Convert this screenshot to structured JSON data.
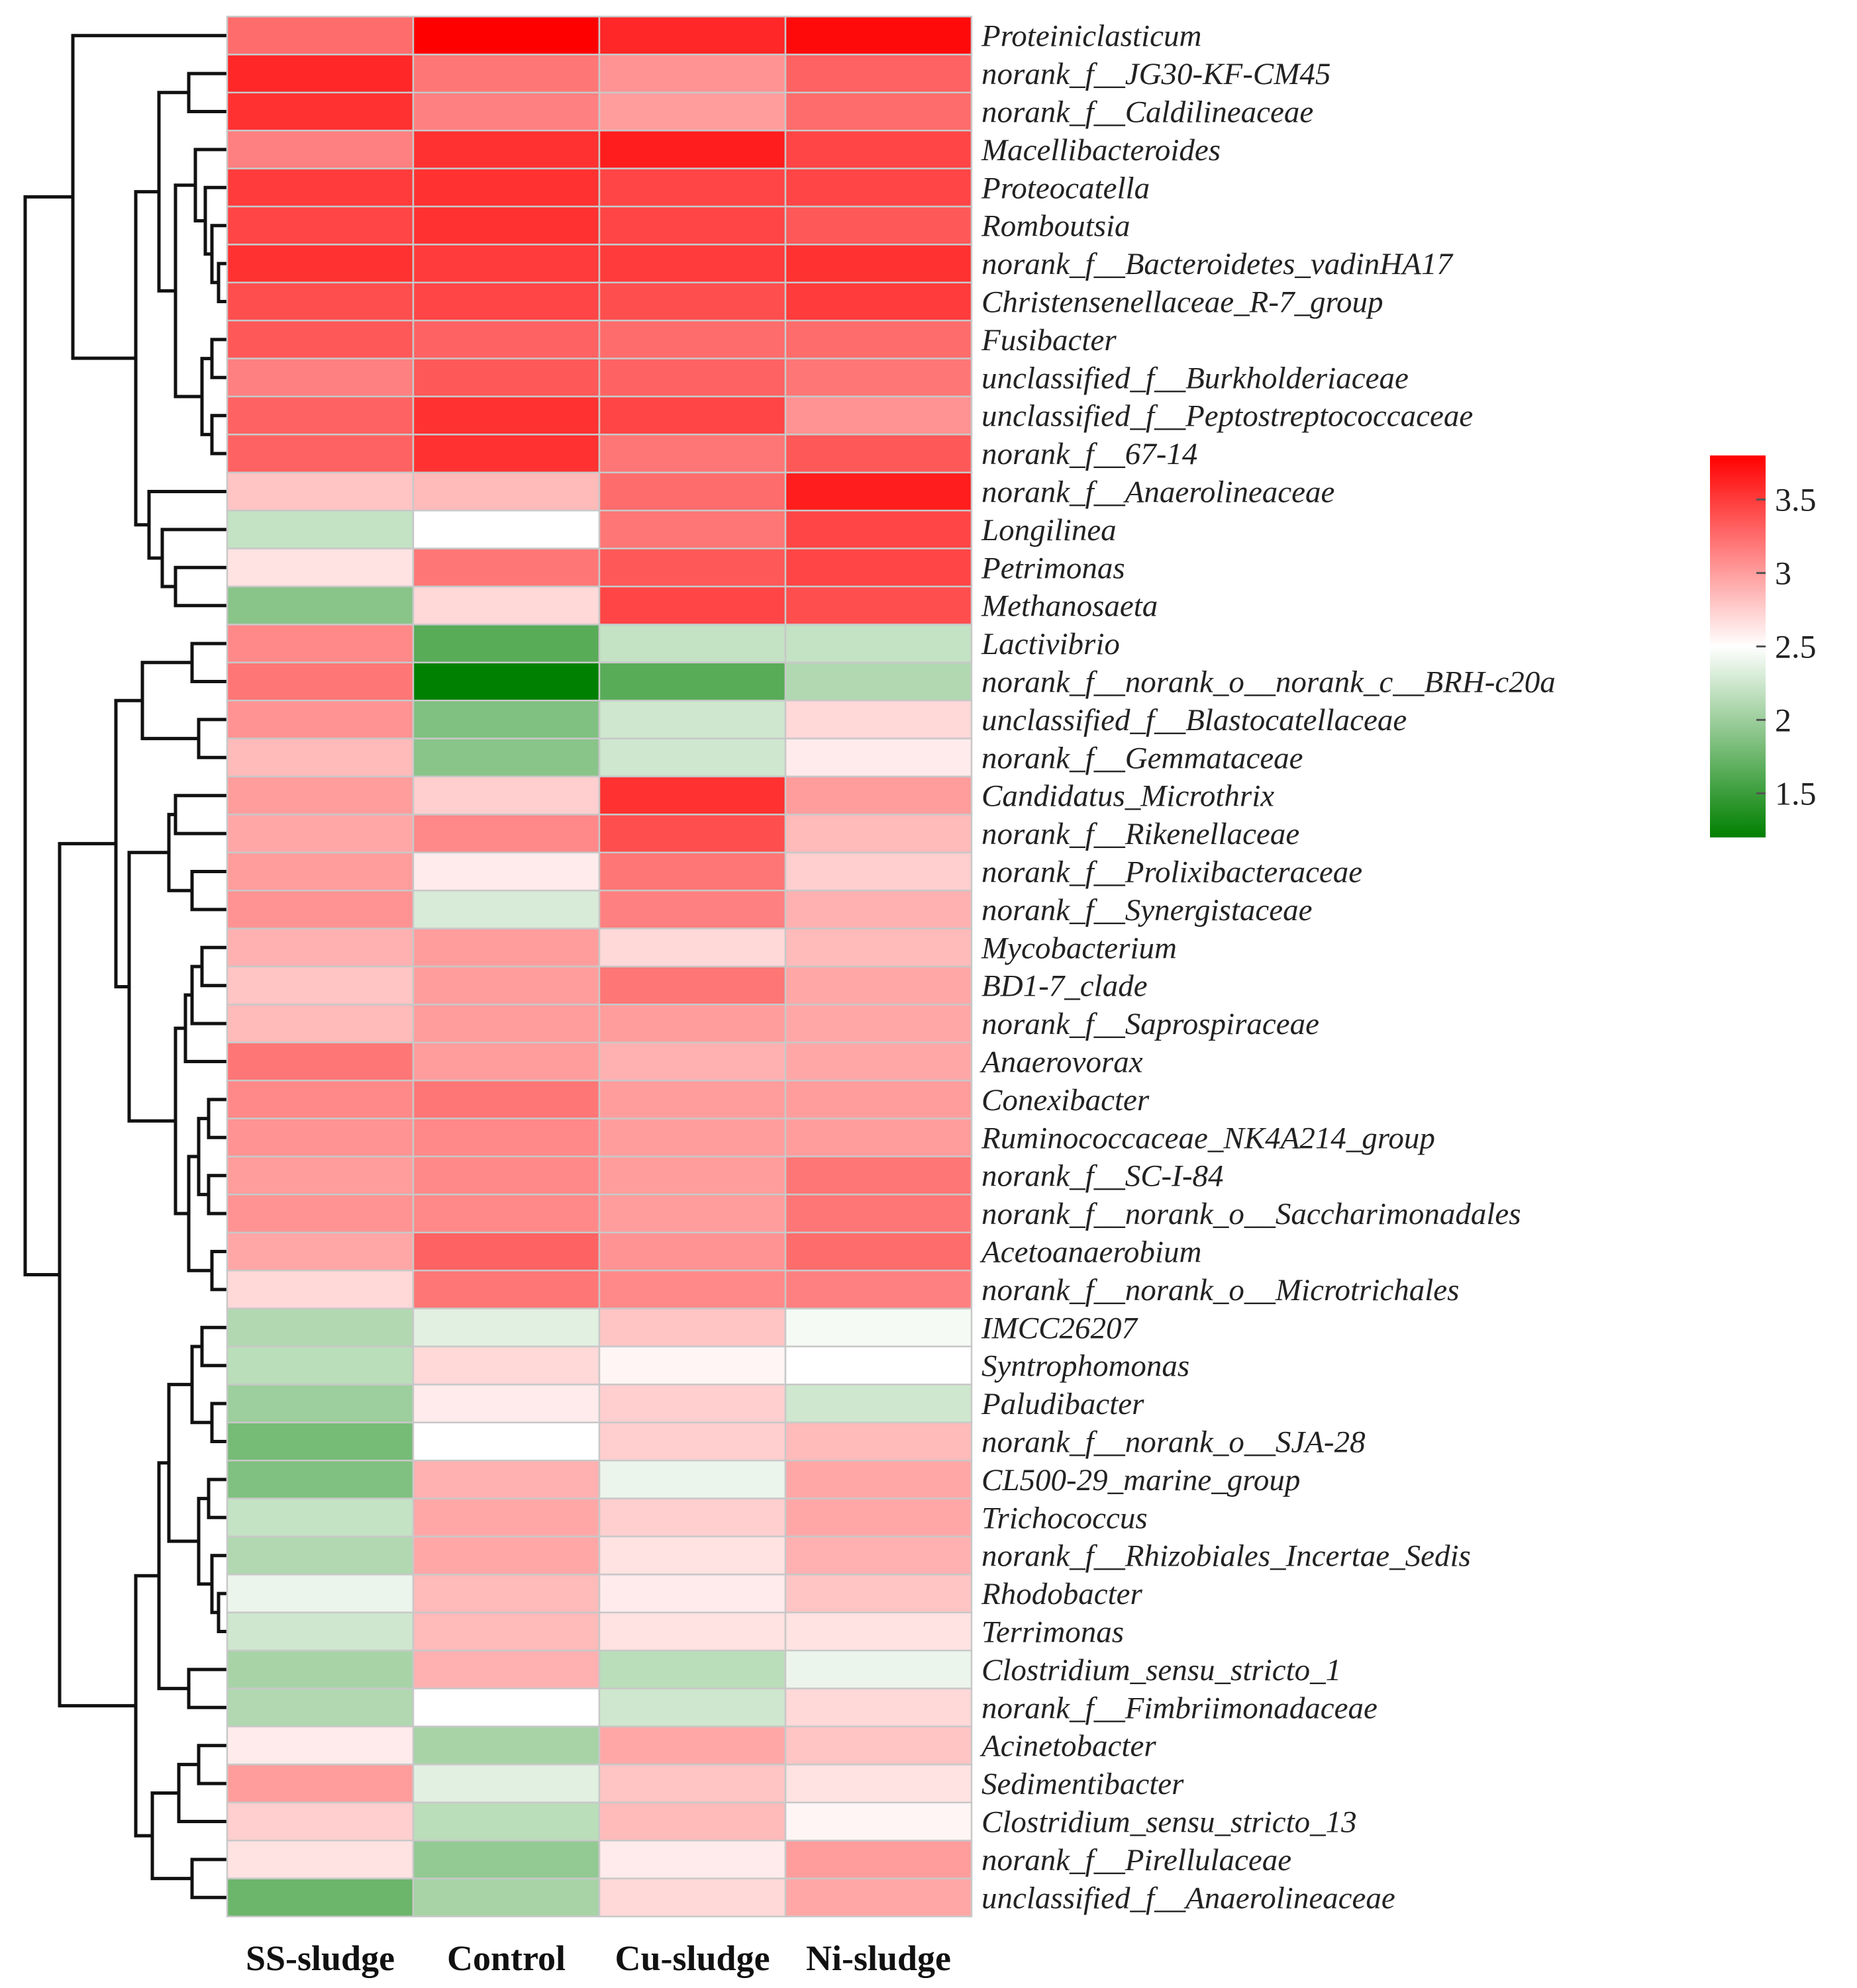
{
  "chart_data": {
    "type": "heatmap",
    "title": "",
    "columns": [
      "SS-sludge",
      "Control",
      "Cu-sludge",
      "Ni-sludge"
    ],
    "rows": [
      "Proteiniclasticum",
      "norank_f__JG30-KF-CM45",
      "norank_f__Caldilineaceae",
      "Macellibacteroides",
      "Proteocatella",
      "Romboutsia",
      "norank_f__Bacteroidetes_vadinHA17",
      "Christensenellaceae_R-7_group",
      "Fusibacter",
      "unclassified_f__Burkholderiaceae",
      "unclassified_f__Peptostreptococcaceae",
      "norank_f__67-14",
      "norank_f__Anaerolineaceae",
      "Longilinea",
      "Petrimonas",
      "Methanosaeta",
      "Lactivibrio",
      "norank_f__norank_o__norank_c__BRH-c20a",
      "unclassified_f__Blastocatellaceae",
      "norank_f__Gemmataceae",
      "Candidatus_Microthrix",
      "norank_f__Rikenellaceae",
      "norank_f__Prolixibacteraceae",
      "norank_f__Synergistaceae",
      "Mycobacterium",
      "BD1-7_clade",
      "norank_f__Saprospiraceae",
      "Anaerovorax",
      "Conexibacter",
      "Ruminococcaceae_NK4A214_group",
      "norank_f__SC-I-84",
      "norank_f__norank_o__Saccharimonadales",
      "Acetoanaerobium",
      "norank_f__norank_o__Microtrichales",
      "IMCC26207",
      "Syntrophomonas",
      "Paludibacter",
      "norank_f__norank_o__SJA-28",
      "CL500-29_marine_group",
      "Trichococcus",
      "norank_f__Rhizobiales_Incertae_Sedis",
      "Rhodobacter",
      "Terrimonas",
      "Clostridium_sensu_stricto_1",
      "norank_f__Fimbriimonadaceae",
      "Acinetobacter",
      "Sedimentibacter",
      "Clostridium_sensu_stricto_13",
      "norank_f__Pirellulaceae",
      "unclassified_f__Anaerolineaceae"
    ],
    "values": [
      [
        3.25,
        3.8,
        3.6,
        3.75
      ],
      [
        3.6,
        3.2,
        3.05,
        3.3
      ],
      [
        3.55,
        3.15,
        3.0,
        3.25
      ],
      [
        3.15,
        3.55,
        3.65,
        3.45
      ],
      [
        3.5,
        3.55,
        3.45,
        3.45
      ],
      [
        3.45,
        3.55,
        3.45,
        3.35
      ],
      [
        3.55,
        3.5,
        3.5,
        3.55
      ],
      [
        3.4,
        3.45,
        3.4,
        3.5
      ],
      [
        3.35,
        3.3,
        3.25,
        3.25
      ],
      [
        3.15,
        3.35,
        3.3,
        3.2
      ],
      [
        3.3,
        3.55,
        3.45,
        3.05
      ],
      [
        3.3,
        3.55,
        3.2,
        3.35
      ],
      [
        2.8,
        2.85,
        3.25,
        3.65
      ],
      [
        2.2,
        2.5,
        3.2,
        3.45
      ],
      [
        2.65,
        3.2,
        3.35,
        3.45
      ],
      [
        1.9,
        2.7,
        3.45,
        3.4
      ],
      [
        3.1,
        1.65,
        2.2,
        2.2
      ],
      [
        3.2,
        1.2,
        1.65,
        2.1
      ],
      [
        3.05,
        1.85,
        2.25,
        2.7
      ],
      [
        2.85,
        1.9,
        2.25,
        2.6
      ],
      [
        3.0,
        2.75,
        3.55,
        3.0
      ],
      [
        2.95,
        3.1,
        3.4,
        2.85
      ],
      [
        3.0,
        2.6,
        3.2,
        2.75
      ],
      [
        3.05,
        2.3,
        3.15,
        2.9
      ],
      [
        2.9,
        3.0,
        2.7,
        2.85
      ],
      [
        2.8,
        3.0,
        3.2,
        2.95
      ],
      [
        2.85,
        3.0,
        3.0,
        2.95
      ],
      [
        3.2,
        3.0,
        2.9,
        2.95
      ],
      [
        3.1,
        3.2,
        3.0,
        3.0
      ],
      [
        3.05,
        3.1,
        3.0,
        3.0
      ],
      [
        3.0,
        3.1,
        3.0,
        3.2
      ],
      [
        3.05,
        3.1,
        3.0,
        3.2
      ],
      [
        2.95,
        3.3,
        3.05,
        3.25
      ],
      [
        2.7,
        3.2,
        3.1,
        3.15
      ],
      [
        2.1,
        2.35,
        2.8,
        2.45
      ],
      [
        2.15,
        2.7,
        2.55,
        2.5
      ],
      [
        2.0,
        2.6,
        2.75,
        2.25
      ],
      [
        1.8,
        2.5,
        2.75,
        2.85
      ],
      [
        1.85,
        2.9,
        2.4,
        2.95
      ],
      [
        2.2,
        2.95,
        2.75,
        2.95
      ],
      [
        2.1,
        2.95,
        2.65,
        2.9
      ],
      [
        2.4,
        2.85,
        2.6,
        2.8
      ],
      [
        2.25,
        2.85,
        2.65,
        2.65
      ],
      [
        2.05,
        2.9,
        2.15,
        2.4
      ],
      [
        2.1,
        2.5,
        2.25,
        2.7
      ],
      [
        2.6,
        2.05,
        2.95,
        2.8
      ],
      [
        3.0,
        2.35,
        2.8,
        2.65
      ],
      [
        2.75,
        2.15,
        2.85,
        2.55
      ],
      [
        2.65,
        1.95,
        2.6,
        3.0
      ],
      [
        1.75,
        2.05,
        2.7,
        2.95
      ]
    ],
    "colorbar": {
      "ticks": [
        1.5,
        2,
        2.5,
        3,
        3.5
      ],
      "range": [
        1.2,
        3.8
      ],
      "colors": {
        "low": "#008000",
        "mid": "#ffffff",
        "high": "#ff0000"
      },
      "mid_value": 2.5
    },
    "dendrogram_side": "left"
  }
}
